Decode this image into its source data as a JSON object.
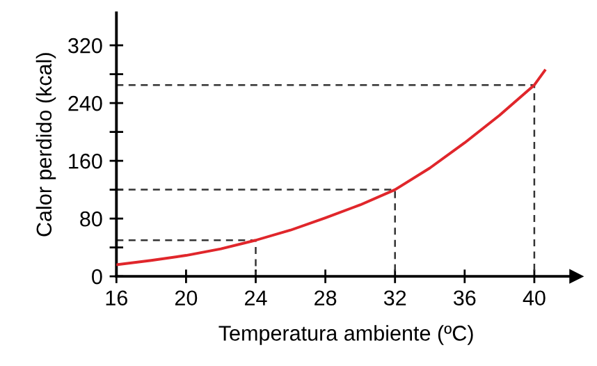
{
  "chart_data": {
    "type": "line",
    "xlabel": "Temperatura ambiente (ºC)",
    "ylabel": "Calor perdido (kcal)",
    "xlim": [
      16,
      42.4
    ],
    "ylim": [
      0,
      365
    ],
    "xticks": [
      16,
      20,
      24,
      28,
      32,
      36,
      40
    ],
    "yticks": [
      0,
      {
        "value": 40,
        "label": null
      },
      80,
      {
        "value": 120,
        "label": null
      },
      160,
      {
        "value": 200,
        "label": null
      },
      240,
      {
        "value": 280,
        "label": null
      },
      320
    ],
    "grid": false,
    "marker": "none",
    "series": [
      {
        "color": "#e0262b",
        "line_style": "solid",
        "x": [
          16,
          18,
          20,
          22,
          24,
          26,
          28,
          30,
          32,
          34,
          36,
          38,
          40,
          40.6
        ],
        "values": [
          16,
          22,
          29,
          38,
          50,
          64,
          81,
          99,
          120,
          150,
          185,
          223,
          265,
          285
        ]
      },
      {
        "color": "#333333",
        "line_style": "dashed",
        "x": [
          16,
          24,
          24
        ],
        "values": [
          50,
          50,
          0
        ]
      },
      {
        "color": "#333333",
        "line_style": "dashed",
        "x": [
          16,
          32,
          32
        ],
        "values": [
          120,
          120,
          0
        ]
      },
      {
        "color": "#333333",
        "line_style": "dashed",
        "x": [
          16,
          40,
          40
        ],
        "values": [
          265,
          265,
          0
        ]
      }
    ]
  }
}
